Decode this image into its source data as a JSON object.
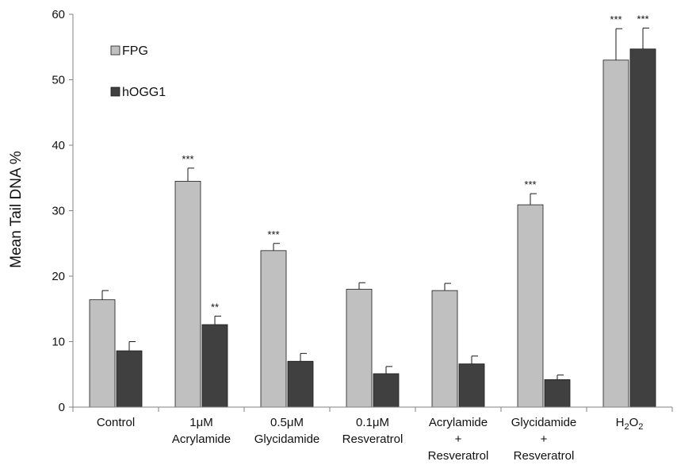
{
  "chart_data": {
    "type": "bar",
    "ylabel": "Mean Tail DNA %",
    "ylim": [
      0,
      60
    ],
    "yticks": [
      0,
      10,
      20,
      30,
      40,
      50,
      60
    ],
    "grid": false,
    "legend_position": "top-left",
    "categories": [
      {
        "lines": [
          "Control"
        ]
      },
      {
        "lines": [
          "1μM",
          "Acrylamide"
        ]
      },
      {
        "lines": [
          "0.5μM",
          "Glycidamide"
        ]
      },
      {
        "lines": [
          "0.1μM",
          "Resveratrol"
        ]
      },
      {
        "lines": [
          "Acrylamide",
          "+",
          "Resveratrol"
        ]
      },
      {
        "lines": [
          "Glycidamide",
          "+",
          "Resveratrol"
        ]
      },
      {
        "lines": [
          "H2O2"
        ]
      }
    ],
    "series": [
      {
        "name": "FPG",
        "color": "#c0c0c0",
        "values": [
          16.4,
          34.5,
          23.9,
          18.0,
          17.8,
          30.9,
          53.0
        ],
        "errors": [
          1.4,
          2.0,
          1.1,
          1.0,
          1.1,
          1.7,
          4.8
        ],
        "significance": [
          "",
          "***",
          "***",
          "",
          "",
          "***",
          "***"
        ]
      },
      {
        "name": "hOGG1",
        "color": "#404040",
        "values": [
          8.6,
          12.6,
          7.0,
          5.1,
          6.6,
          4.2,
          54.7
        ],
        "errors": [
          1.4,
          1.3,
          1.2,
          1.1,
          1.2,
          0.7,
          3.2
        ],
        "significance": [
          "",
          "**",
          "",
          "",
          "",
          "",
          "***"
        ]
      }
    ]
  }
}
